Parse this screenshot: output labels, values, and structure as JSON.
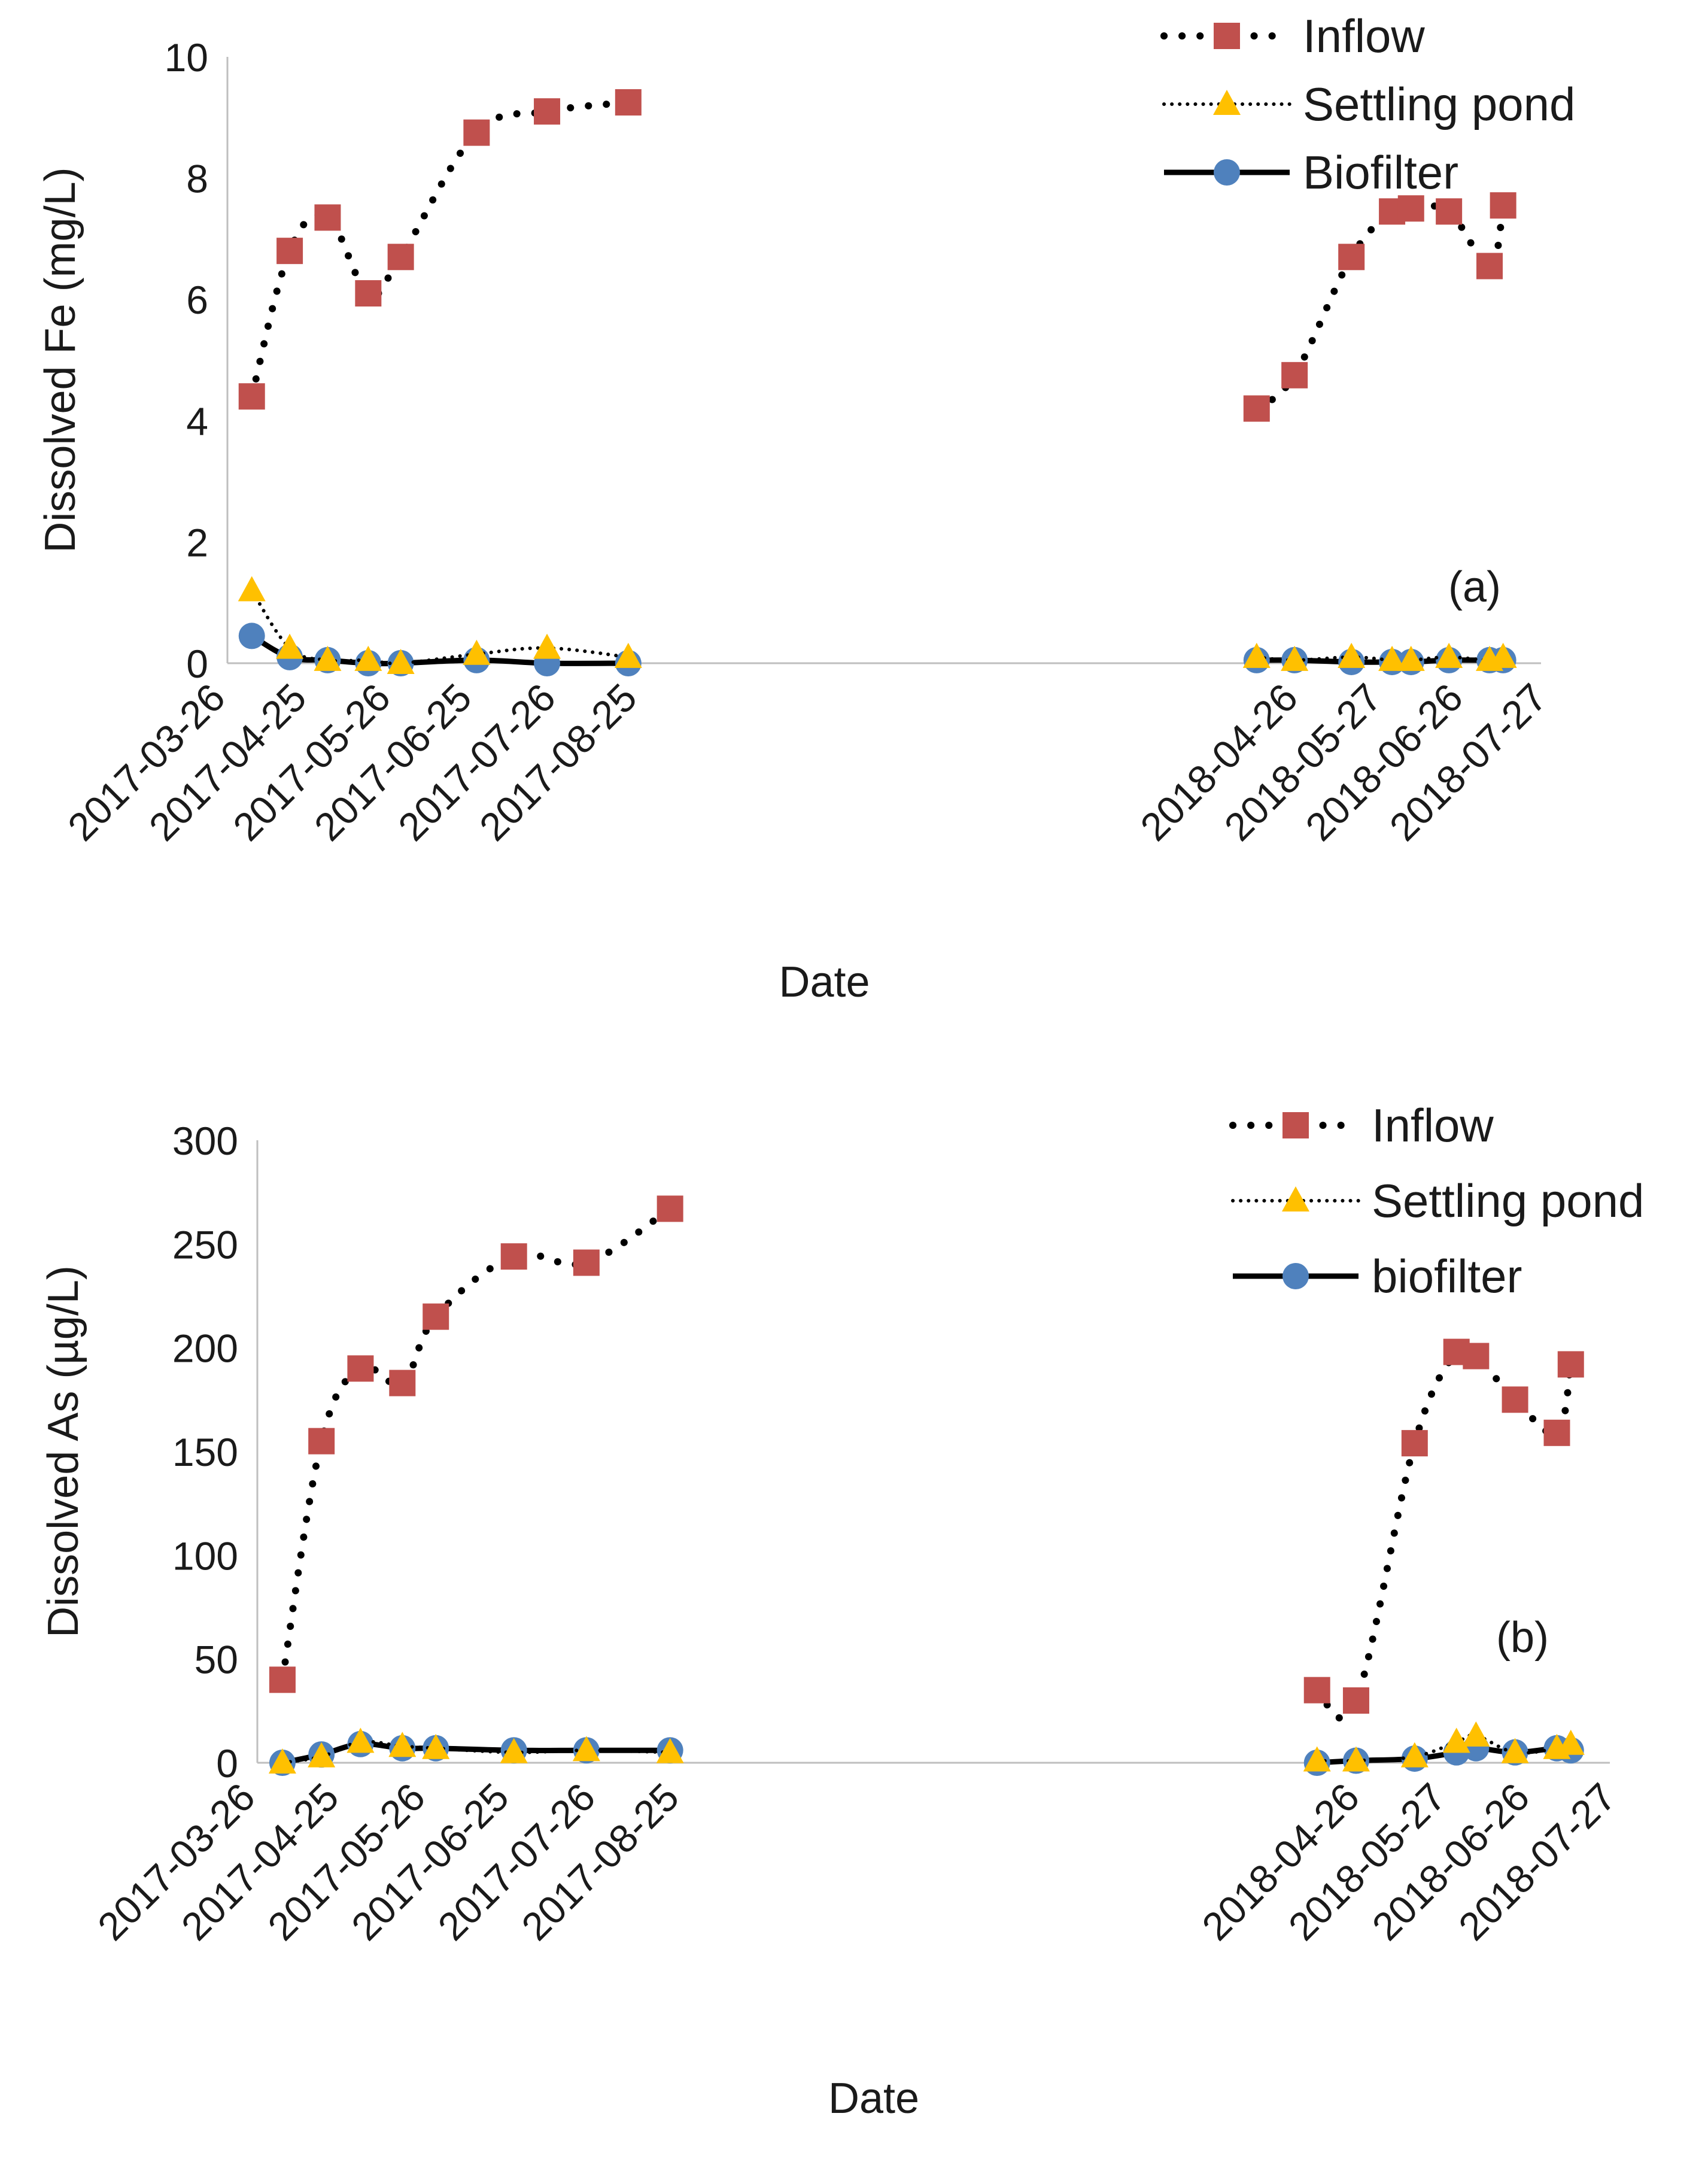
{
  "chart_data": [
    {
      "type": "line",
      "panel_label": "(a)",
      "title": "",
      "xlabel": "Date",
      "ylabel": "Dissolved Fe  (mg/L)",
      "ylim": [
        0,
        10
      ],
      "yticks": [
        "0",
        "2",
        "4",
        "6",
        "8",
        "10"
      ],
      "xrange_days": [
        0,
        485
      ],
      "xticks": [
        {
          "label": "2017-03-26",
          "day": 0
        },
        {
          "label": "2017-04-25",
          "day": 30
        },
        {
          "label": "2017-05-26",
          "day": 61
        },
        {
          "label": "2017-06-25",
          "day": 91
        },
        {
          "label": "2017-07-26",
          "day": 122
        },
        {
          "label": "2017-08-25",
          "day": 152
        },
        {
          "label": "2018-04-26",
          "day": 396
        },
        {
          "label": "2018-05-27",
          "day": 427
        },
        {
          "label": "2018-06-26",
          "day": 457
        },
        {
          "label": "2018-07-27",
          "day": 488
        }
      ],
      "legend_position": "top-right",
      "grid": false,
      "series": [
        {
          "name": "Inflow",
          "line": "dotted-heavy",
          "marker": "square",
          "color": "#c0504d",
          "segments": [
            {
              "x": [
                9,
                23,
                37,
                52,
                64,
                92,
                118,
                148
              ],
              "y": [
                4.4,
                6.8,
                7.35,
                6.1,
                6.7,
                8.75,
                9.1,
                9.25
              ]
            },
            {
              "x": [
                380,
                394,
                415,
                430,
                437,
                451,
                466,
                471
              ],
              "y": [
                4.2,
                4.75,
                6.7,
                7.45,
                7.5,
                7.45,
                6.55,
                7.55
              ]
            }
          ]
        },
        {
          "name": "Settling pond",
          "line": "dotted-light",
          "marker": "triangle",
          "color": "#ffc000",
          "segments": [
            {
              "x": [
                9,
                23,
                37,
                52,
                64,
                92,
                118,
                148
              ],
              "y": [
                1.2,
                0.25,
                0.05,
                0.05,
                0.0,
                0.15,
                0.25,
                0.1
              ]
            },
            {
              "x": [
                380,
                394,
                415,
                430,
                437,
                451,
                466,
                471
              ],
              "y": [
                0.1,
                0.05,
                0.1,
                0.05,
                0.05,
                0.1,
                0.05,
                0.1
              ]
            }
          ]
        },
        {
          "name": "Biofilter",
          "line": "solid",
          "marker": "circle",
          "color": "#4f81bd",
          "segments": [
            {
              "x": [
                9,
                23,
                37,
                52,
                64,
                92,
                118,
                148
              ],
              "y": [
                0.45,
                0.1,
                0.05,
                0.0,
                0.0,
                0.05,
                0.0,
                0.0
              ]
            },
            {
              "x": [
                380,
                394,
                415,
                430,
                437,
                451,
                466,
                471
              ],
              "y": [
                0.05,
                0.05,
                0.02,
                0.02,
                0.02,
                0.05,
                0.05,
                0.05
              ]
            }
          ]
        }
      ]
    },
    {
      "type": "line",
      "panel_label": "(b)",
      "title": "",
      "xlabel": "Date",
      "ylabel": "Dissolved As (µg/L)",
      "ylim": [
        0,
        300
      ],
      "yticks": [
        "0",
        "50",
        "100",
        "150",
        "200",
        "250",
        "300"
      ],
      "xrange_days": [
        0,
        485
      ],
      "xticks": [
        {
          "label": "2017-03-26",
          "day": 0
        },
        {
          "label": "2017-04-25",
          "day": 30
        },
        {
          "label": "2017-05-26",
          "day": 61
        },
        {
          "label": "2017-06-25",
          "day": 91
        },
        {
          "label": "2017-07-26",
          "day": 122
        },
        {
          "label": "2017-08-25",
          "day": 152
        },
        {
          "label": "2018-04-26",
          "day": 396
        },
        {
          "label": "2018-05-27",
          "day": 427
        },
        {
          "label": "2018-06-26",
          "day": 457
        },
        {
          "label": "2018-07-27",
          "day": 488
        }
      ],
      "legend_position": "top-right",
      "grid": false,
      "series": [
        {
          "name": "Inflow",
          "line": "dotted-heavy",
          "marker": "square",
          "color": "#c0504d",
          "segments": [
            {
              "x": [
                9,
                23,
                37,
                52,
                64,
                92,
                118,
                148
              ],
              "y": [
                40,
                155,
                190,
                183,
                215,
                244,
                241,
                267
              ]
            },
            {
              "x": [
                380,
                394,
                415,
                430,
                437,
                451,
                466,
                471
              ],
              "y": [
                35,
                30,
                154,
                198,
                196,
                175,
                159,
                192
              ]
            }
          ]
        },
        {
          "name": "Settling pond",
          "line": "dotted-light",
          "marker": "triangle",
          "color": "#ffc000",
          "segments": [
            {
              "x": [
                9,
                23,
                37,
                52,
                64,
                92,
                118,
                148
              ],
              "y": [
                0,
                3,
                10,
                8,
                7,
                5,
                6,
                5
              ]
            },
            {
              "x": [
                380,
                394,
                415,
                430,
                437,
                451,
                466,
                471
              ],
              "y": [
                1,
                1,
                3,
                10,
                13,
                5,
                7,
                9
              ]
            }
          ]
        },
        {
          "name": "biofilter",
          "line": "solid",
          "marker": "circle",
          "color": "#4f81bd",
          "segments": [
            {
              "x": [
                9,
                23,
                37,
                52,
                64,
                92,
                118,
                148
              ],
              "y": [
                0,
                4,
                9,
                7,
                7,
                6,
                6,
                6
              ]
            },
            {
              "x": [
                380,
                394,
                415,
                430,
                437,
                451,
                466,
                471
              ],
              "y": [
                0,
                1,
                2,
                5,
                7,
                5,
                7,
                6
              ]
            }
          ]
        }
      ]
    }
  ]
}
